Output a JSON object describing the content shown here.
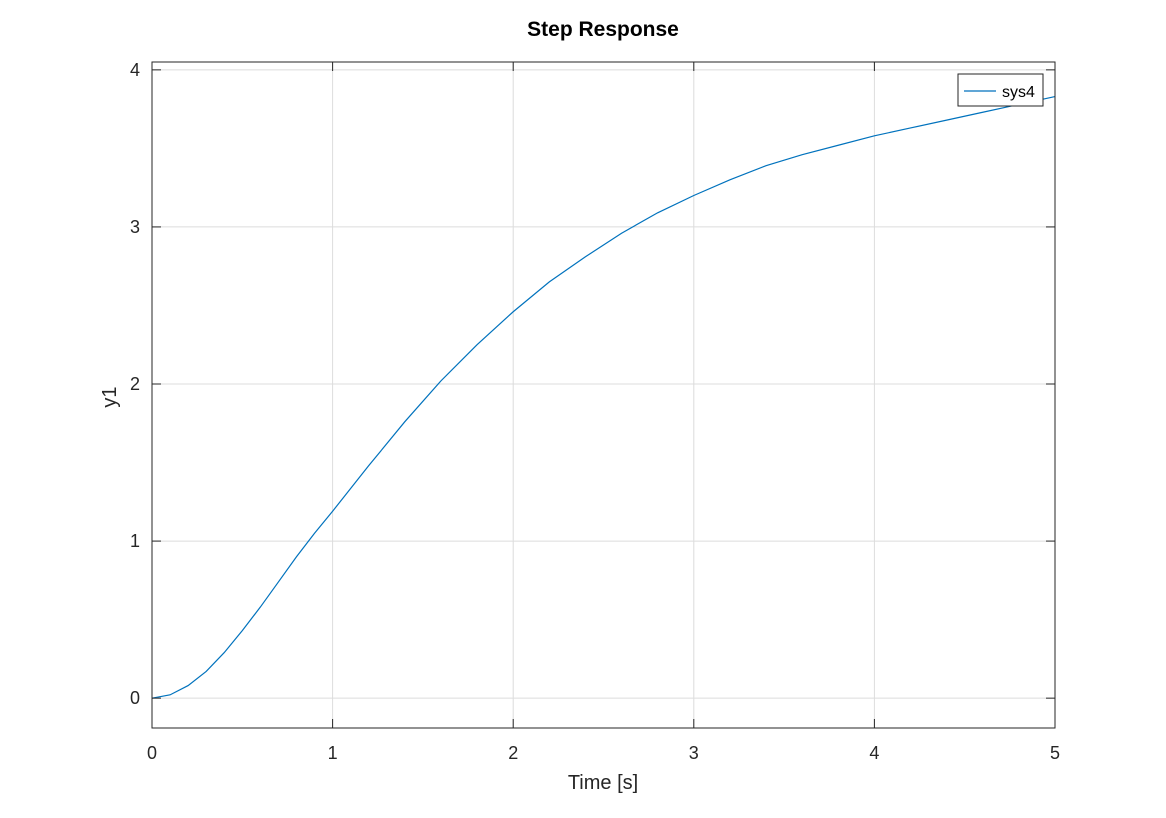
{
  "chart_data": {
    "type": "line",
    "title": "Step Response",
    "xlabel": "Time [s]",
    "ylabel": "y1",
    "xlim": [
      0,
      5
    ],
    "ylim": [
      -0.19,
      4.05
    ],
    "xticks": [
      0,
      1,
      2,
      3,
      4,
      5
    ],
    "yticks": [
      0,
      1,
      2,
      3,
      4
    ],
    "grid": true,
    "legend": {
      "position": "top-right",
      "entries": [
        "sys4"
      ]
    },
    "series": [
      {
        "name": "sys4",
        "color": "#0072bd",
        "x": [
          0,
          0.1,
          0.2,
          0.3,
          0.4,
          0.5,
          0.6,
          0.7,
          0.8,
          0.9,
          1.0,
          1.2,
          1.4,
          1.6,
          1.8,
          2.0,
          2.2,
          2.4,
          2.6,
          2.8,
          3.0,
          3.2,
          3.4,
          3.6,
          3.8,
          4.0,
          4.2,
          4.4,
          4.6,
          4.8,
          5.0
        ],
        "y": [
          0,
          0.021,
          0.08,
          0.17,
          0.29,
          0.43,
          0.58,
          0.74,
          0.9,
          1.05,
          1.19,
          1.48,
          1.76,
          2.02,
          2.25,
          2.46,
          2.65,
          2.81,
          2.96,
          3.09,
          3.2,
          3.3,
          3.39,
          3.46,
          3.52,
          3.58,
          3.63,
          3.68,
          3.73,
          3.78,
          3.83
        ]
      }
    ]
  }
}
